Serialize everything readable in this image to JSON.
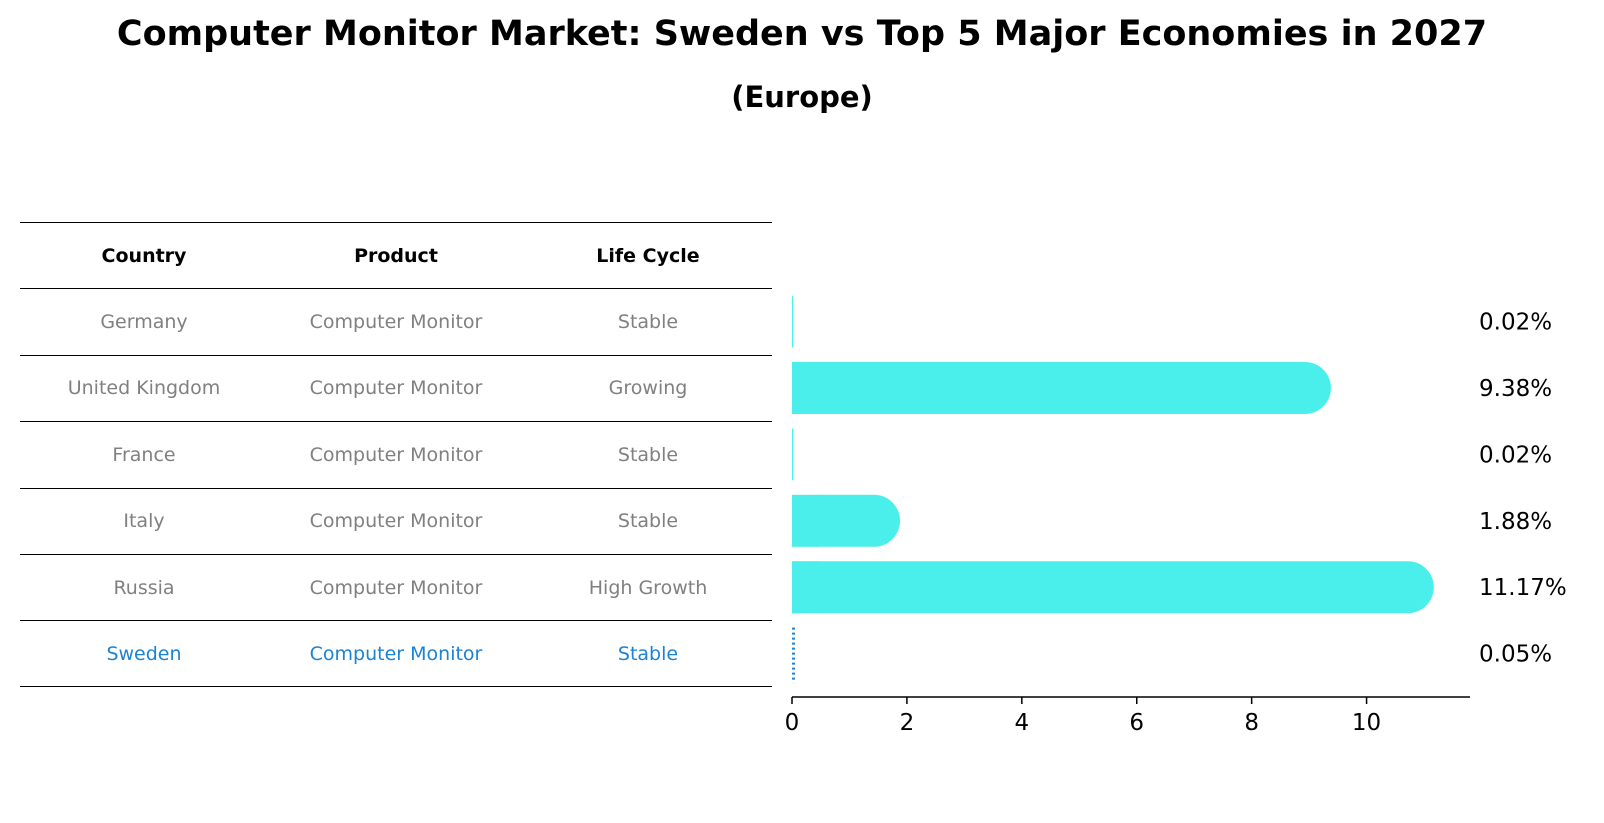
{
  "title": "Computer Monitor Market: Sweden vs Top 5 Major Economies in 2027",
  "subtitle": "(Europe)",
  "table": {
    "headers": [
      "Country",
      "Product",
      "Life Cycle"
    ],
    "rows": [
      [
        "Germany",
        "Computer Monitor",
        "Stable"
      ],
      [
        "United Kingdom",
        "Computer Monitor",
        "Growing"
      ],
      [
        "France",
        "Computer Monitor",
        "Stable"
      ],
      [
        "Italy",
        "Computer Monitor",
        "Stable"
      ],
      [
        "Russia",
        "Computer Monitor",
        "High Growth"
      ],
      [
        "Sweden",
        "Computer Monitor",
        "Stable"
      ]
    ]
  },
  "colors": {
    "bar": "#4aeeea",
    "highlight": "#1a83d6",
    "muted": "#808080"
  },
  "chart_data": {
    "type": "bar",
    "orientation": "horizontal",
    "categories": [
      "Germany",
      "United Kingdom",
      "France",
      "Italy",
      "Russia",
      "Sweden"
    ],
    "values": [
      0.02,
      9.38,
      0.02,
      1.88,
      11.17,
      0.05
    ],
    "value_labels": [
      "0.02%",
      "9.38%",
      "0.02%",
      "1.88%",
      "11.17%",
      "0.05%"
    ],
    "highlight_category": "Sweden",
    "xlim": [
      0,
      11.8
    ],
    "xticks": [
      0,
      2,
      4,
      6,
      8,
      10
    ],
    "grid": false
  }
}
